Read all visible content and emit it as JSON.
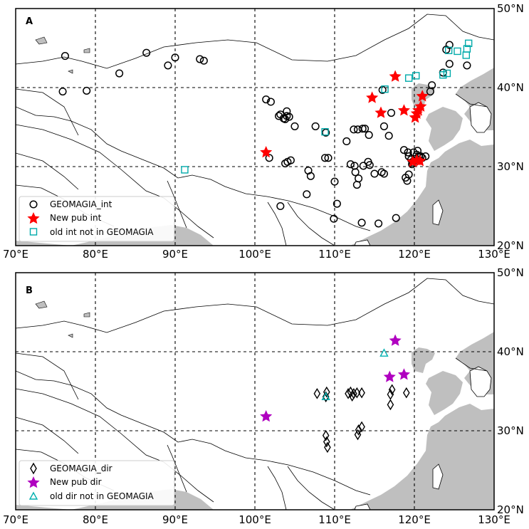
{
  "figure": {
    "colors": {
      "sea": "#bfbfbf",
      "land": "#ffffff",
      "border": "#000000",
      "grid": "#000000",
      "circle": "#000000",
      "star_int": "#ff0000",
      "star_dir": "#b000c0",
      "square": "#00aaaa",
      "triangle": "#00b0b0",
      "diamond": "#000000"
    },
    "axes": {
      "lon_ticks": [
        70,
        80,
        90,
        100,
        110,
        120,
        130
      ],
      "lon_tick_labels": [
        "70°E",
        "80°E",
        "90°E",
        "100°E",
        "110°E",
        "120°E",
        "130°E"
      ],
      "lat_ticks": [
        20,
        30,
        40,
        50
      ],
      "lat_tick_labels": [
        "20°N",
        "30°N",
        "40°N",
        "50°N"
      ],
      "lon_range": [
        70,
        130
      ],
      "lat_range": [
        20,
        50
      ]
    }
  },
  "panels": [
    {
      "label": "A",
      "legend": [
        {
          "marker": "circle",
          "text": "GEOMAGIA_int"
        },
        {
          "marker": "star-red",
          "text": "New pub int"
        },
        {
          "marker": "square",
          "text": "old int not in GEOMAGIA"
        }
      ]
    },
    {
      "label": "B",
      "legend": [
        {
          "marker": "diamond",
          "text": "GEOMAGIA_dir"
        },
        {
          "marker": "star-purple",
          "text": "New pub dir"
        },
        {
          "marker": "triangle",
          "text": "old dir not in GEOMAGIA"
        }
      ]
    }
  ],
  "chart_data": [
    {
      "type": "scatter",
      "panel": "A",
      "xlim": [
        70,
        130
      ],
      "ylim": [
        20,
        50
      ],
      "grid": true,
      "legend_position": "bottom-left",
      "series": [
        {
          "name": "GEOMAGIA_int",
          "marker": "circle",
          "points": [
            [
              75.9,
              39.5
            ],
            [
              78.9,
              39.6
            ],
            [
              76.2,
              44.0
            ],
            [
              83.0,
              41.8
            ],
            [
              86.4,
              44.4
            ],
            [
              89.1,
              42.8
            ],
            [
              90.0,
              43.8
            ],
            [
              93.1,
              43.6
            ],
            [
              93.6,
              43.4
            ],
            [
              101.4,
              38.5
            ],
            [
              102.0,
              38.2
            ],
            [
              101.8,
              31.1
            ],
            [
              103.0,
              36.4
            ],
            [
              103.2,
              36.6
            ],
            [
              103.6,
              36.1
            ],
            [
              104.0,
              36.4
            ],
            [
              104.0,
              37.0
            ],
            [
              103.8,
              36.0
            ],
            [
              104.3,
              36.3
            ],
            [
              104.1,
              30.6
            ],
            [
              104.5,
              30.8
            ],
            [
              103.8,
              30.4
            ],
            [
              105.0,
              35.1
            ],
            [
              106.7,
              29.5
            ],
            [
              107.0,
              28.8
            ],
            [
              106.5,
              26.5
            ],
            [
              103.2,
              25.0
            ],
            [
              107.6,
              35.1
            ],
            [
              108.9,
              34.3
            ],
            [
              108.8,
              31.1
            ],
            [
              109.2,
              31.1
            ],
            [
              110.0,
              28.1
            ],
            [
              110.3,
              25.3
            ],
            [
              111.5,
              33.2
            ],
            [
              112.0,
              30.3
            ],
            [
              112.5,
              30.1
            ],
            [
              112.6,
              29.3
            ],
            [
              113.0,
              28.5
            ],
            [
              112.8,
              27.7
            ],
            [
              112.4,
              34.7
            ],
            [
              112.9,
              34.7
            ],
            [
              113.5,
              34.8
            ],
            [
              113.8,
              34.8
            ],
            [
              114.3,
              34.0
            ],
            [
              114.2,
              30.6
            ],
            [
              114.4,
              30.2
            ],
            [
              113.6,
              30.1
            ],
            [
              115.0,
              29.1
            ],
            [
              115.9,
              29.3
            ],
            [
              116.2,
              29.1
            ],
            [
              116.8,
              33.9
            ],
            [
              116.2,
              35.1
            ],
            [
              117.1,
              36.8
            ],
            [
              118.7,
              32.1
            ],
            [
              119.2,
              31.8
            ],
            [
              119.3,
              31.3
            ],
            [
              119.6,
              30.9
            ],
            [
              119.7,
              30.3
            ],
            [
              119.8,
              30.5
            ],
            [
              120.3,
              31.5
            ],
            [
              120.5,
              30.9
            ],
            [
              120.6,
              31.3
            ],
            [
              120.8,
              31.3
            ],
            [
              121.0,
              31.1
            ],
            [
              121.4,
              31.3
            ],
            [
              119.3,
              29.0
            ],
            [
              118.9,
              28.6
            ],
            [
              119.1,
              28.2
            ],
            [
              117.7,
              23.5
            ],
            [
              115.5,
              22.8
            ],
            [
              113.4,
              22.9
            ],
            [
              109.9,
              23.4
            ],
            [
              120.4,
              32.0
            ],
            [
              119.9,
              31.8
            ],
            [
              116.0,
              39.7
            ],
            [
              122.0,
              39.5
            ],
            [
              122.2,
              40.3
            ],
            [
              123.6,
              41.9
            ],
            [
              124.4,
              43.0
            ],
            [
              124.0,
              44.8
            ],
            [
              124.4,
              45.4
            ],
            [
              126.6,
              42.8
            ]
          ]
        },
        {
          "name": "New pub int",
          "marker": "star",
          "points": [
            [
              101.4,
              31.8
            ],
            [
              117.6,
              41.4
            ],
            [
              114.7,
              38.7
            ],
            [
              115.8,
              36.8
            ],
            [
              118.7,
              37.1
            ],
            [
              121.0,
              38.9
            ],
            [
              120.8,
              37.6
            ],
            [
              120.5,
              37.1
            ],
            [
              120.3,
              36.7
            ],
            [
              120.1,
              36.2
            ],
            [
              119.8,
              30.6
            ],
            [
              120.3,
              30.8
            ],
            [
              120.7,
              30.7
            ]
          ]
        },
        {
          "name": "old int not in GEOMAGIA",
          "marker": "square",
          "points": [
            [
              91.2,
              29.6
            ],
            [
              108.8,
              34.4
            ],
            [
              116.3,
              39.8
            ],
            [
              119.3,
              41.2
            ],
            [
              120.2,
              41.5
            ],
            [
              123.6,
              41.6
            ],
            [
              124.1,
              41.8
            ],
            [
              124.3,
              44.7
            ],
            [
              125.4,
              44.6
            ],
            [
              126.6,
              44.9
            ],
            [
              126.8,
              45.6
            ],
            [
              126.5,
              44.1
            ]
          ]
        }
      ]
    },
    {
      "type": "scatter",
      "panel": "B",
      "xlim": [
        70,
        130
      ],
      "ylim": [
        20,
        50
      ],
      "grid": true,
      "legend_position": "bottom-left",
      "series": [
        {
          "name": "GEOMAGIA_dir",
          "marker": "diamond",
          "points": [
            [
              107.8,
              34.7
            ],
            [
              109.0,
              34.9
            ],
            [
              108.9,
              34.3
            ],
            [
              108.9,
              29.4
            ],
            [
              109.0,
              28.6
            ],
            [
              109.1,
              27.9
            ],
            [
              111.7,
              34.7
            ],
            [
              112.0,
              34.9
            ],
            [
              112.2,
              34.4
            ],
            [
              112.4,
              34.7
            ],
            [
              112.8,
              34.8
            ],
            [
              113.4,
              34.8
            ],
            [
              113.4,
              30.5
            ],
            [
              113.0,
              30.1
            ],
            [
              112.9,
              29.5
            ],
            [
              117.2,
              35.2
            ],
            [
              117.0,
              34.6
            ],
            [
              117.0,
              33.3
            ],
            [
              119.0,
              34.8
            ]
          ]
        },
        {
          "name": "New pub dir",
          "marker": "star",
          "points": [
            [
              101.4,
              31.8
            ],
            [
              117.6,
              41.4
            ],
            [
              118.7,
              37.1
            ],
            [
              116.9,
              36.8
            ]
          ]
        },
        {
          "name": "old dir not in GEOMAGIA",
          "marker": "triangle",
          "points": [
            [
              116.2,
              39.8
            ],
            [
              108.9,
              34.3
            ]
          ]
        }
      ]
    }
  ]
}
